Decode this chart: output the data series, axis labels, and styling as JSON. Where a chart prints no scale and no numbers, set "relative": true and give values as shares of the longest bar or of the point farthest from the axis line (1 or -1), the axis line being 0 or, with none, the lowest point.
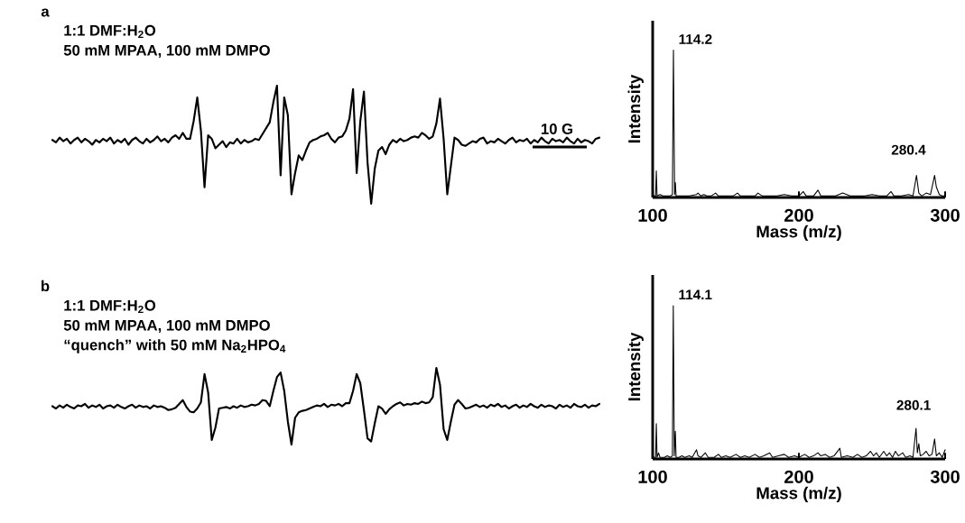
{
  "chart_data": [
    {
      "type": "line",
      "relative": true,
      "title": "1:1 DMF:H$_{2}$O",
      "subtitle": "50 mM MPAA, 100 mM DMPO",
      "annotations": [
        "a",
        "10 G"
      ],
      "categories": [
        null,
        null,
        null,
        null,
        null,
        null,
        null,
        null,
        null,
        null,
        null,
        null,
        null,
        null,
        null,
        null,
        null,
        null,
        null,
        null,
        null,
        null,
        null,
        null,
        null,
        null,
        null,
        null,
        null,
        null,
        null,
        null,
        null,
        null,
        null,
        null,
        null,
        null,
        null,
        null,
        null,
        null,
        null,
        null,
        null,
        null,
        null,
        null,
        null,
        null,
        null,
        null,
        null,
        null,
        null,
        null,
        null,
        null,
        null,
        null,
        null,
        null,
        null,
        null,
        null,
        null,
        null,
        null,
        null,
        null,
        null,
        null,
        null,
        null,
        null,
        null,
        null,
        null,
        null,
        null,
        null,
        null,
        null,
        null,
        null,
        null,
        null,
        null,
        null,
        null,
        null,
        null,
        null,
        null,
        null,
        null,
        null,
        null,
        null,
        null,
        null,
        null,
        null,
        null,
        null,
        null,
        null,
        null,
        null,
        null,
        null,
        null,
        null,
        null,
        null,
        null,
        null,
        null,
        null,
        null,
        null,
        null,
        null,
        null,
        null,
        null,
        null,
        null,
        null,
        null,
        null,
        null,
        null,
        null,
        null,
        null,
        null,
        null,
        null,
        null,
        null,
        null,
        null,
        null,
        null,
        null,
        null,
        null,
        null,
        null,
        null,
        null
      ],
      "series": [
        {
          "color": "#000000",
          "values": [
            0.54,
            0.52,
            0.56,
            0.53,
            0.55,
            0.51,
            0.54,
            0.56,
            0.52,
            0.55,
            0.53,
            0.5,
            0.54,
            0.52,
            0.55,
            0.53,
            0.56,
            0.51,
            0.54,
            0.52,
            0.55,
            0.5,
            0.54,
            0.56,
            0.53,
            0.51,
            0.55,
            0.52,
            0.54,
            0.57,
            0.53,
            0.55,
            0.52,
            0.56,
            0.58,
            0.55,
            0.6,
            0.55,
            0.55,
            0.7,
            0.9,
            0.62,
            0.14,
            0.58,
            0.55,
            0.47,
            0.5,
            0.53,
            0.48,
            0.52,
            0.51,
            0.55,
            0.51,
            0.54,
            0.52,
            0.53,
            0.55,
            0.54,
            0.59,
            0.64,
            0.69,
            0.86,
            1.0,
            0.24,
            0.9,
            0.75,
            0.08,
            0.26,
            0.41,
            0.37,
            0.45,
            0.52,
            0.54,
            0.55,
            0.57,
            0.58,
            0.6,
            0.55,
            0.52,
            0.56,
            0.57,
            0.62,
            0.72,
            0.97,
            0.26,
            0.7,
            0.95,
            0.35,
            0.0,
            0.3,
            0.45,
            0.48,
            0.42,
            0.5,
            0.54,
            0.52,
            0.55,
            0.53,
            0.54,
            0.56,
            0.57,
            0.56,
            0.6,
            0.58,
            0.55,
            0.57,
            0.68,
            0.89,
            0.55,
            0.08,
            0.32,
            0.56,
            0.54,
            0.5,
            0.49,
            0.51,
            0.53,
            0.52,
            0.55,
            0.56,
            0.51,
            0.53,
            0.52,
            0.55,
            0.53,
            0.51,
            0.54,
            0.56,
            0.52,
            0.54,
            0.53,
            0.55,
            0.51,
            0.54,
            0.52,
            0.56,
            0.53,
            0.51,
            0.55,
            0.53,
            0.54,
            0.52,
            0.56,
            0.53,
            0.51,
            0.55,
            0.52,
            0.54,
            0.53,
            0.51,
            0.55,
            0.56
          ]
        }
      ]
    },
    {
      "type": "line",
      "relative": true,
      "title": "1:1 DMF:H$_{2}$O",
      "subtitle": "50 mM MPAA, 100 mM DMPO",
      "annotations": [
        "b",
        "“quench” with 50 mM Na$_{2}$HPO$_{4}$"
      ],
      "categories": [
        null,
        null,
        null,
        null,
        null,
        null,
        null,
        null,
        null,
        null,
        null,
        null,
        null,
        null,
        null,
        null,
        null,
        null,
        null,
        null,
        null,
        null,
        null,
        null,
        null,
        null,
        null,
        null,
        null,
        null,
        null,
        null,
        null,
        null,
        null,
        null,
        null,
        null,
        null,
        null,
        null,
        null,
        null,
        null,
        null,
        null,
        null,
        null,
        null,
        null,
        null,
        null,
        null,
        null,
        null,
        null,
        null,
        null,
        null,
        null,
        null,
        null,
        null,
        null,
        null,
        null,
        null,
        null,
        null,
        null,
        null,
        null,
        null,
        null,
        null,
        null,
        null,
        null,
        null,
        null,
        null,
        null,
        null,
        null,
        null,
        null,
        null,
        null,
        null,
        null,
        null,
        null,
        null,
        null,
        null,
        null,
        null,
        null,
        null,
        null,
        null,
        null,
        null,
        null,
        null,
        null,
        null,
        null,
        null,
        null,
        null,
        null,
        null,
        null,
        null,
        null,
        null,
        null,
        null,
        null,
        null,
        null,
        null,
        null,
        null,
        null,
        null,
        null,
        null,
        null,
        null,
        null,
        null,
        null,
        null,
        null,
        null,
        null,
        null,
        null,
        null,
        null,
        null,
        null,
        null,
        null,
        null,
        null,
        null,
        null,
        null,
        null
      ],
      "series": [
        {
          "color": "#000000",
          "values": [
            0.5,
            0.47,
            0.51,
            0.48,
            0.52,
            0.49,
            0.47,
            0.51,
            0.5,
            0.53,
            0.48,
            0.51,
            0.49,
            0.52,
            0.47,
            0.5,
            0.51,
            0.48,
            0.52,
            0.49,
            0.47,
            0.5,
            0.52,
            0.48,
            0.51,
            0.49,
            0.5,
            0.47,
            0.51,
            0.49,
            0.5,
            0.48,
            0.45,
            0.46,
            0.48,
            0.53,
            0.58,
            0.49,
            0.43,
            0.42,
            0.47,
            0.55,
            0.92,
            0.68,
            0.06,
            0.22,
            0.47,
            0.48,
            0.49,
            0.47,
            0.5,
            0.48,
            0.51,
            0.49,
            0.5,
            0.52,
            0.51,
            0.53,
            0.58,
            0.57,
            0.5,
            0.7,
            0.88,
            0.94,
            0.7,
            0.3,
            0.0,
            0.35,
            0.42,
            0.44,
            0.45,
            0.47,
            0.49,
            0.51,
            0.5,
            0.53,
            0.49,
            0.52,
            0.51,
            0.53,
            0.5,
            0.54,
            0.54,
            0.7,
            0.92,
            0.8,
            0.45,
            0.08,
            0.04,
            0.28,
            0.5,
            0.47,
            0.4,
            0.46,
            0.5,
            0.53,
            0.55,
            0.51,
            0.53,
            0.52,
            0.54,
            0.53,
            0.56,
            0.54,
            0.55,
            0.62,
            1.0,
            0.78,
            0.2,
            0.06,
            0.3,
            0.52,
            0.58,
            0.53,
            0.47,
            0.48,
            0.5,
            0.52,
            0.49,
            0.51,
            0.48,
            0.52,
            0.5,
            0.53,
            0.49,
            0.51,
            0.47,
            0.5,
            0.52,
            0.48,
            0.51,
            0.49,
            0.53,
            0.5,
            0.48,
            0.52,
            0.49,
            0.51,
            0.5,
            0.47,
            0.52,
            0.49,
            0.51,
            0.48,
            0.53,
            0.5,
            0.49,
            0.52,
            0.48,
            0.51,
            0.5,
            0.53
          ]
        }
      ]
    },
    {
      "type": "line",
      "relative": true,
      "xlabel": "Mass (m/z)",
      "ylabel": "Intensity",
      "xlim": [
        100,
        300
      ],
      "xticks": [
        100,
        200,
        300
      ],
      "tick_labels": "x",
      "annotations": [
        {
          "text": "114.2",
          "x": 114.2,
          "y": 1
        },
        {
          "text": "280.4",
          "x": 280.4,
          "y": 0.15
        }
      ],
      "series": [
        {
          "color": "#000000",
          "x": [
            100,
            101,
            102,
            102.5,
            103,
            105,
            107,
            110,
            112,
            113.5,
            114.2,
            115,
            115.5,
            116,
            120,
            125,
            130,
            131,
            133,
            135,
            137,
            140,
            143,
            145,
            150,
            155,
            158,
            160,
            165,
            170,
            172,
            175,
            180,
            185,
            190,
            195,
            200,
            203,
            205,
            210,
            213,
            215,
            220,
            225,
            230,
            235,
            240,
            245,
            250,
            255,
            260,
            263,
            265,
            270,
            275,
            278,
            280.4,
            282,
            284,
            287,
            290,
            292.8,
            294,
            296,
            298,
            300
          ],
          "values": [
            0.02,
            0.01,
            0.01,
            0.18,
            0.01,
            0.02,
            0.01,
            0.01,
            0.01,
            0.02,
            1,
            0.02,
            0.1,
            0.01,
            0.01,
            0.01,
            0.02,
            0.03,
            0.01,
            0.02,
            0.01,
            0.01,
            0.03,
            0.01,
            0.01,
            0.01,
            0.03,
            0.01,
            0.01,
            0.01,
            0.03,
            0.01,
            0.01,
            0.01,
            0.02,
            0.01,
            0.01,
            0.04,
            0.01,
            0.01,
            0.05,
            0.01,
            0.01,
            0.01,
            0.03,
            0.01,
            0.01,
            0.01,
            0.02,
            0.01,
            0.01,
            0.04,
            0.01,
            0.01,
            0.02,
            0.01,
            0.15,
            0.03,
            0.01,
            0.03,
            0.02,
            0.15,
            0.07,
            0.02,
            0.01,
            0.01
          ]
        }
      ]
    },
    {
      "type": "line",
      "relative": true,
      "xlabel": "Mass (m/z)",
      "ylabel": "Intensity",
      "xlim": [
        100,
        300
      ],
      "xticks": [
        100,
        200,
        300
      ],
      "tick_labels": "x",
      "annotations": [
        {
          "text": "114.1",
          "x": 114.1,
          "y": 1
        },
        {
          "text": "280.1",
          "x": 280.1,
          "y": 0.2
        }
      ],
      "series": [
        {
          "color": "#000000",
          "x": [
            100,
            101,
            102,
            102.5,
            103,
            104,
            105,
            108,
            110,
            112,
            113.5,
            114.1,
            114.8,
            115.5,
            116,
            118,
            120,
            122,
            125,
            127,
            130,
            131,
            133,
            136,
            138,
            142,
            145,
            147,
            150,
            153,
            157,
            160,
            163,
            166,
            170,
            173,
            176,
            180,
            182,
            186,
            190,
            193,
            197,
            200,
            204,
            207,
            210,
            213,
            215,
            218,
            221,
            224,
            228,
            229,
            233,
            237,
            240,
            243,
            246,
            249,
            251,
            253,
            255,
            258,
            260,
            262,
            264,
            266,
            268,
            271,
            273,
            276,
            278,
            280.1,
            281,
            282,
            283,
            285,
            287,
            289,
            291,
            292.8,
            294,
            296,
            298,
            300
          ],
          "values": [
            0.02,
            0.01,
            0.01,
            0.23,
            0.01,
            0.04,
            0.01,
            0.01,
            0.02,
            0.01,
            0.02,
            1,
            0.02,
            0.18,
            0.01,
            0.01,
            0.02,
            0.01,
            0.02,
            0.01,
            0.06,
            0.02,
            0.01,
            0.04,
            0.01,
            0.01,
            0.03,
            0.01,
            0.02,
            0.01,
            0.03,
            0.01,
            0.02,
            0.01,
            0.03,
            0.01,
            0.02,
            0.04,
            0.01,
            0.02,
            0.03,
            0.01,
            0.02,
            0.01,
            0.03,
            0.01,
            0.02,
            0.04,
            0.02,
            0.03,
            0.01,
            0.02,
            0.07,
            0.01,
            0.02,
            0.01,
            0.03,
            0.01,
            0.02,
            0.05,
            0.02,
            0.04,
            0.01,
            0.05,
            0.02,
            0.04,
            0.01,
            0.05,
            0.02,
            0.04,
            0.01,
            0.02,
            0.01,
            0.2,
            0.04,
            0.1,
            0.02,
            0.03,
            0.05,
            0.02,
            0.03,
            0.13,
            0.02,
            0.04,
            0.01,
            0.06
          ]
        }
      ]
    }
  ]
}
